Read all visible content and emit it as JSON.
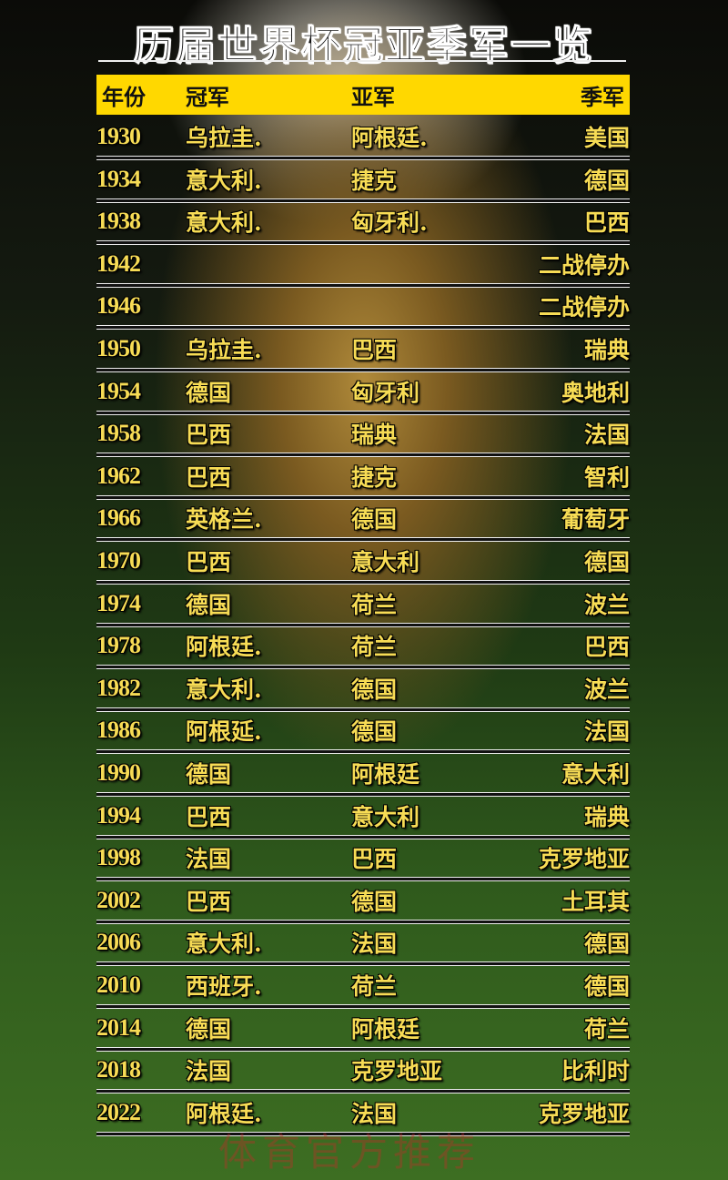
{
  "title": "历届世界杯冠亚季军一览",
  "headers": {
    "year": "年份",
    "champion": "冠军",
    "runner_up": "亚军",
    "third": "季军"
  },
  "rows": [
    {
      "year": "1930",
      "champion": "乌拉圭.",
      "runner_up": "阿根廷.",
      "third": "美国"
    },
    {
      "year": "1934",
      "champion": "意大利.",
      "runner_up": "捷克",
      "third": "德国"
    },
    {
      "year": "1938",
      "champion": "意大利.",
      "runner_up": "匈牙利.",
      "third": "巴西"
    },
    {
      "year": "1942",
      "champion": "",
      "runner_up": "",
      "third": "二战停办"
    },
    {
      "year": "1946",
      "champion": "",
      "runner_up": "",
      "third": "二战停办"
    },
    {
      "year": "1950",
      "champion": "乌拉圭.",
      "runner_up": "巴西",
      "third": "瑞典"
    },
    {
      "year": "1954",
      "champion": "德国",
      "runner_up": "匈牙利",
      "third": "奥地利"
    },
    {
      "year": "1958",
      "champion": "巴西",
      "runner_up": "瑞典",
      "third": "法国"
    },
    {
      "year": "1962",
      "champion": "巴西",
      "runner_up": "捷克",
      "third": "智利"
    },
    {
      "year": "1966",
      "champion": "英格兰.",
      "runner_up": "德国",
      "third": "葡萄牙"
    },
    {
      "year": "1970",
      "champion": "巴西",
      "runner_up": "意大利",
      "third": "德国"
    },
    {
      "year": "1974",
      "champion": "德国",
      "runner_up": "荷兰",
      "third": "波兰"
    },
    {
      "year": "1978",
      "champion": "阿根廷.",
      "runner_up": "荷兰",
      "third": "巴西"
    },
    {
      "year": "1982",
      "champion": "意大利.",
      "runner_up": "德国",
      "third": "波兰"
    },
    {
      "year": "1986",
      "champion": "阿根延.",
      "runner_up": "德国",
      "third": "法国"
    },
    {
      "year": "1990",
      "champion": "德国",
      "runner_up": "阿根廷",
      "third": "意大利"
    },
    {
      "year": "1994",
      "champion": "巴西",
      "runner_up": "意大利",
      "third": "瑞典"
    },
    {
      "year": "1998",
      "champion": "法国",
      "runner_up": "巴西",
      "third": "克罗地亚"
    },
    {
      "year": "2002",
      "champion": "巴西",
      "runner_up": "德国",
      "third": "土耳其"
    },
    {
      "year": "2006",
      "champion": "意大利.",
      "runner_up": "法国",
      "third": "德国"
    },
    {
      "year": "2010",
      "champion": "西班牙.",
      "runner_up": "荷兰",
      "third": "德国"
    },
    {
      "year": "2014",
      "champion": "德国",
      "runner_up": "阿根廷",
      "third": "荷兰"
    },
    {
      "year": "2018",
      "champion": "法国",
      "runner_up": "克罗地亚",
      "third": "比利时"
    },
    {
      "year": "2022",
      "champion": "阿根廷.",
      "runner_up": "法国",
      "third": "克罗地亚"
    }
  ],
  "watermark": "体育官方推荐",
  "colors": {
    "header_bg": "#ffd800",
    "row_text": "#f7dc55"
  }
}
